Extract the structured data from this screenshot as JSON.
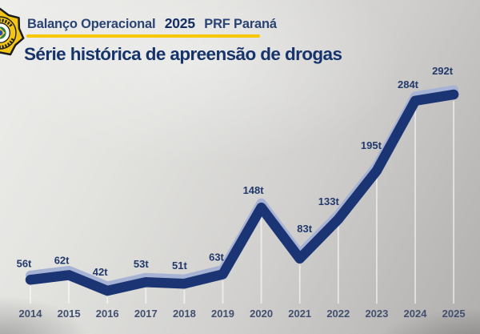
{
  "header": {
    "badge_name": "prf-badge",
    "title_prefix": "Balanço Operacional",
    "year": "2025",
    "title_suffix": "PRF Paraná",
    "accent_color": "#f6c800"
  },
  "page_title": "Série histórica de apreensão de drogas",
  "chart_data": {
    "type": "line",
    "title": "Série histórica de apreensão de drogas",
    "unit": "t",
    "categories": [
      "2014",
      "2015",
      "2016",
      "2017",
      "2018",
      "2019",
      "2020",
      "2021",
      "2022",
      "2023",
      "2024",
      "2025"
    ],
    "values": [
      56,
      62,
      42,
      53,
      51,
      63,
      148,
      83,
      133,
      195,
      284,
      292
    ],
    "point_labels": [
      "56t",
      "62t",
      "42t",
      "53t",
      "51t",
      "63t",
      "148t",
      "83t",
      "133t",
      "195t",
      "284t",
      "292t"
    ],
    "xlabel": "",
    "ylabel": "",
    "ylim": [
      0,
      300
    ],
    "grid": "off",
    "legend": "none",
    "style": {
      "line_front_color": "#1b3574",
      "line_top_color": "#a7b3d4",
      "point_label_color": "#22396b",
      "axis_label_color": "#42506f",
      "drop_line_color": "rgba(255,255,255,0.6)"
    }
  }
}
